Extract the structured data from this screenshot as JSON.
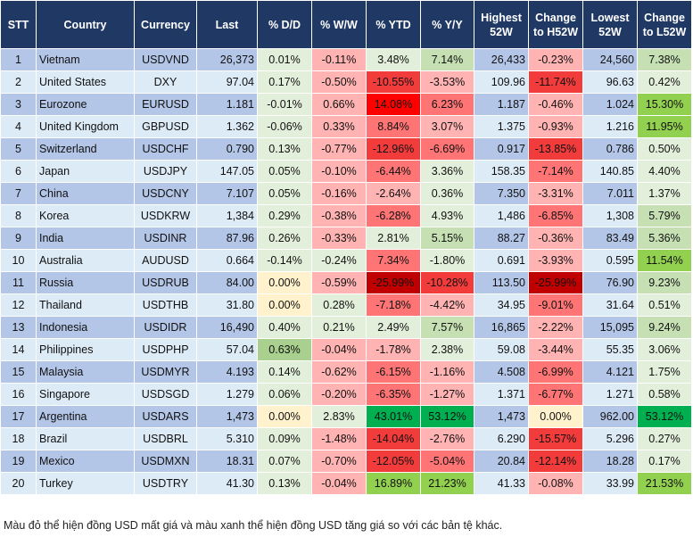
{
  "headers": [
    "STT",
    "Country",
    "Currency",
    "Last",
    "% D/D",
    "% W/W",
    "% YTD",
    "% Y/Y",
    "Highest 52W",
    "Change to H52W",
    "Lowest 52W",
    "Change to L52W"
  ],
  "colors": {
    "g1": "#e2efda",
    "g2": "#c6e0b4",
    "g2d": "#a9d08e",
    "g3": "#92d050",
    "g4": "#00b050",
    "r1": "#ffb3b3",
    "r2": "#ff7575",
    "r3": "#f23c3c",
    "r4": "#ff0000",
    "r5": "#c00000",
    "y": "#fff2cc",
    "header": "#1f3864",
    "row_dark": "#b4c6e7",
    "row_light": "#ddebf7"
  },
  "rows": [
    {
      "stt": "1",
      "country": "Vietnam",
      "currency": "USDVND",
      "last": "26,373",
      "dd": "0.01%",
      "ww": "-0.11%",
      "ytd": "3.48%",
      "yy": "7.14%",
      "high": "26,433",
      "chh": "-0.23%",
      "low": "24,560",
      "chl": "7.38%",
      "shade": [
        "g1",
        "r1",
        "g1",
        "g2",
        "r1",
        "g2"
      ]
    },
    {
      "stt": "2",
      "country": "United States",
      "currency": "DXY",
      "last": "97.04",
      "dd": "0.17%",
      "ww": "-0.50%",
      "ytd": "-10.55%",
      "yy": "-3.53%",
      "high": "109.96",
      "chh": "-11.74%",
      "low": "96.63",
      "chl": "0.42%",
      "shade": [
        "g1",
        "r1",
        "r3",
        "r1",
        "r3",
        "g1"
      ]
    },
    {
      "stt": "3",
      "country": "Eurozone",
      "currency": "EURUSD",
      "last": "1.181",
      "dd": "-0.01%",
      "ww": "0.66%",
      "ytd": "14.08%",
      "yy": "6.23%",
      "high": "1.187",
      "chh": "-0.46%",
      "low": "1.024",
      "chl": "15.30%",
      "shade": [
        "g1",
        "r1",
        "r4",
        "r2",
        "r1",
        "g3"
      ]
    },
    {
      "stt": "4",
      "country": "United Kingdom",
      "currency": "GBPUSD",
      "last": "1.362",
      "dd": "-0.06%",
      "ww": "0.33%",
      "ytd": "8.84%",
      "yy": "3.07%",
      "high": "1.375",
      "chh": "-0.93%",
      "low": "1.216",
      "chl": "11.95%",
      "shade": [
        "g1",
        "r1",
        "r2",
        "r1",
        "r1",
        "g3"
      ]
    },
    {
      "stt": "5",
      "country": "Switzerland",
      "currency": "USDCHF",
      "last": "0.790",
      "dd": "0.13%",
      "ww": "-0.77%",
      "ytd": "-12.96%",
      "yy": "-6.69%",
      "high": "0.917",
      "chh": "-13.85%",
      "low": "0.786",
      "chl": "0.50%",
      "shade": [
        "g1",
        "r1",
        "r3",
        "r2",
        "r3",
        "g1"
      ]
    },
    {
      "stt": "6",
      "country": "Japan",
      "currency": "USDJPY",
      "last": "147.05",
      "dd": "0.05%",
      "ww": "-0.10%",
      "ytd": "-6.44%",
      "yy": "3.36%",
      "high": "158.35",
      "chh": "-7.14%",
      "low": "140.85",
      "chl": "4.40%",
      "shade": [
        "g1",
        "r1",
        "r2",
        "g1",
        "r2",
        "g1"
      ]
    },
    {
      "stt": "7",
      "country": "China",
      "currency": "USDCNY",
      "last": "7.107",
      "dd": "0.05%",
      "ww": "-0.16%",
      "ytd": "-2.64%",
      "yy": "0.36%",
      "high": "7.350",
      "chh": "-3.31%",
      "low": "7.011",
      "chl": "1.37%",
      "shade": [
        "g1",
        "r1",
        "r1",
        "g1",
        "r1",
        "g1"
      ]
    },
    {
      "stt": "8",
      "country": "Korea",
      "currency": "USDKRW",
      "last": "1,384",
      "dd": "0.29%",
      "ww": "-0.38%",
      "ytd": "-6.28%",
      "yy": "4.93%",
      "high": "1,486",
      "chh": "-6.85%",
      "low": "1,308",
      "chl": "5.79%",
      "shade": [
        "g1",
        "r1",
        "r2",
        "g1",
        "r2",
        "g2"
      ]
    },
    {
      "stt": "9",
      "country": "India",
      "currency": "USDINR",
      "last": "87.96",
      "dd": "0.26%",
      "ww": "-0.33%",
      "ytd": "2.81%",
      "yy": "5.15%",
      "high": "88.27",
      "chh": "-0.36%",
      "low": "83.49",
      "chl": "5.36%",
      "shade": [
        "g1",
        "r1",
        "g1",
        "g2",
        "r1",
        "g2"
      ]
    },
    {
      "stt": "10",
      "country": "Australia",
      "currency": "AUDUSD",
      "last": "0.664",
      "dd": "-0.14%",
      "ww": "-0.24%",
      "ytd": "7.34%",
      "yy": "-1.80%",
      "high": "0.691",
      "chh": "-3.93%",
      "low": "0.595",
      "chl": "11.54%",
      "shade": [
        "g1",
        "g1",
        "r2",
        "g1",
        "r1",
        "g3"
      ]
    },
    {
      "stt": "11",
      "country": "Russia",
      "currency": "USDRUB",
      "last": "84.00",
      "dd": "0.00%",
      "ww": "-0.59%",
      "ytd": "-25.99%",
      "yy": "-10.28%",
      "high": "113.50",
      "chh": "-25.99%",
      "low": "76.90",
      "chl": "9.23%",
      "shade": [
        "y",
        "r1",
        "r5",
        "r3",
        "r5",
        "g2"
      ]
    },
    {
      "stt": "12",
      "country": "Thailand",
      "currency": "USDTHB",
      "last": "31.80",
      "dd": "0.00%",
      "ww": "0.28%",
      "ytd": "-7.18%",
      "yy": "-4.42%",
      "high": "34.95",
      "chh": "-9.01%",
      "low": "31.64",
      "chl": "0.51%",
      "shade": [
        "y",
        "g1",
        "r2",
        "r1",
        "r2",
        "g1"
      ]
    },
    {
      "stt": "13",
      "country": "Indonesia",
      "currency": "USDIDR",
      "last": "16,490",
      "dd": "0.40%",
      "ww": "0.21%",
      "ytd": "2.49%",
      "yy": "7.57%",
      "high": "16,865",
      "chh": "-2.22%",
      "low": "15,095",
      "chl": "9.24%",
      "shade": [
        "g1",
        "g1",
        "g1",
        "g2",
        "r1",
        "g2"
      ]
    },
    {
      "stt": "14",
      "country": "Philippines",
      "currency": "USDPHP",
      "last": "57.04",
      "dd": "0.63%",
      "ww": "-0.04%",
      "ytd": "-1.78%",
      "yy": "2.38%",
      "high": "59.08",
      "chh": "-3.44%",
      "low": "55.35",
      "chl": "3.06%",
      "shade": [
        "g2d",
        "r1",
        "r1",
        "g1",
        "r1",
        "g1"
      ]
    },
    {
      "stt": "15",
      "country": "Malaysia",
      "currency": "USDMYR",
      "last": "4.193",
      "dd": "0.14%",
      "ww": "-0.62%",
      "ytd": "-6.15%",
      "yy": "-1.16%",
      "high": "4.508",
      "chh": "-6.99%",
      "low": "4.121",
      "chl": "1.75%",
      "shade": [
        "g1",
        "r1",
        "r2",
        "r1",
        "r2",
        "g1"
      ]
    },
    {
      "stt": "16",
      "country": "Singapore",
      "currency": "USDSGD",
      "last": "1.279",
      "dd": "0.06%",
      "ww": "-0.20%",
      "ytd": "-6.35%",
      "yy": "-1.27%",
      "high": "1.371",
      "chh": "-6.77%",
      "low": "1.271",
      "chl": "0.58%",
      "shade": [
        "g1",
        "r1",
        "r2",
        "r1",
        "r2",
        "g1"
      ]
    },
    {
      "stt": "17",
      "country": "Argentina",
      "currency": "USDARS",
      "last": "1,473",
      "dd": "0.00%",
      "ww": "2.83%",
      "ytd": "43.01%",
      "yy": "53.12%",
      "high": "1,473",
      "chh": "0.00%",
      "low": "962.00",
      "chl": "53.12%",
      "shade": [
        "y",
        "g1",
        "g4",
        "g4",
        "y",
        "g4"
      ]
    },
    {
      "stt": "18",
      "country": "Brazil",
      "currency": "USDBRL",
      "last": "5.310",
      "dd": "0.09%",
      "ww": "-1.48%",
      "ytd": "-14.04%",
      "yy": "-2.76%",
      "high": "6.290",
      "chh": "-15.57%",
      "low": "5.296",
      "chl": "0.27%",
      "shade": [
        "g1",
        "r1",
        "r3",
        "r1",
        "r3",
        "g1"
      ]
    },
    {
      "stt": "19",
      "country": "Mexico",
      "currency": "USDMXN",
      "last": "18.31",
      "dd": "0.07%",
      "ww": "-0.70%",
      "ytd": "-12.05%",
      "yy": "-5.04%",
      "high": "20.84",
      "chh": "-12.14%",
      "low": "18.28",
      "chl": "0.17%",
      "shade": [
        "g1",
        "r1",
        "r3",
        "r2",
        "r3",
        "g1"
      ]
    },
    {
      "stt": "20",
      "country": "Turkey",
      "currency": "USDTRY",
      "last": "41.30",
      "dd": "0.13%",
      "ww": "-0.04%",
      "ytd": "16.89%",
      "yy": "21.23%",
      "high": "41.33",
      "chh": "-0.08%",
      "low": "33.99",
      "chl": "21.53%",
      "shade": [
        "g1",
        "r1",
        "g3",
        "g3",
        "r1",
        "g3"
      ]
    }
  ],
  "footnote": "Màu đỏ thể hiện đồng USD mất giá và màu xanh thể hiện đồng USD tăng giá so với các bản tệ khác."
}
